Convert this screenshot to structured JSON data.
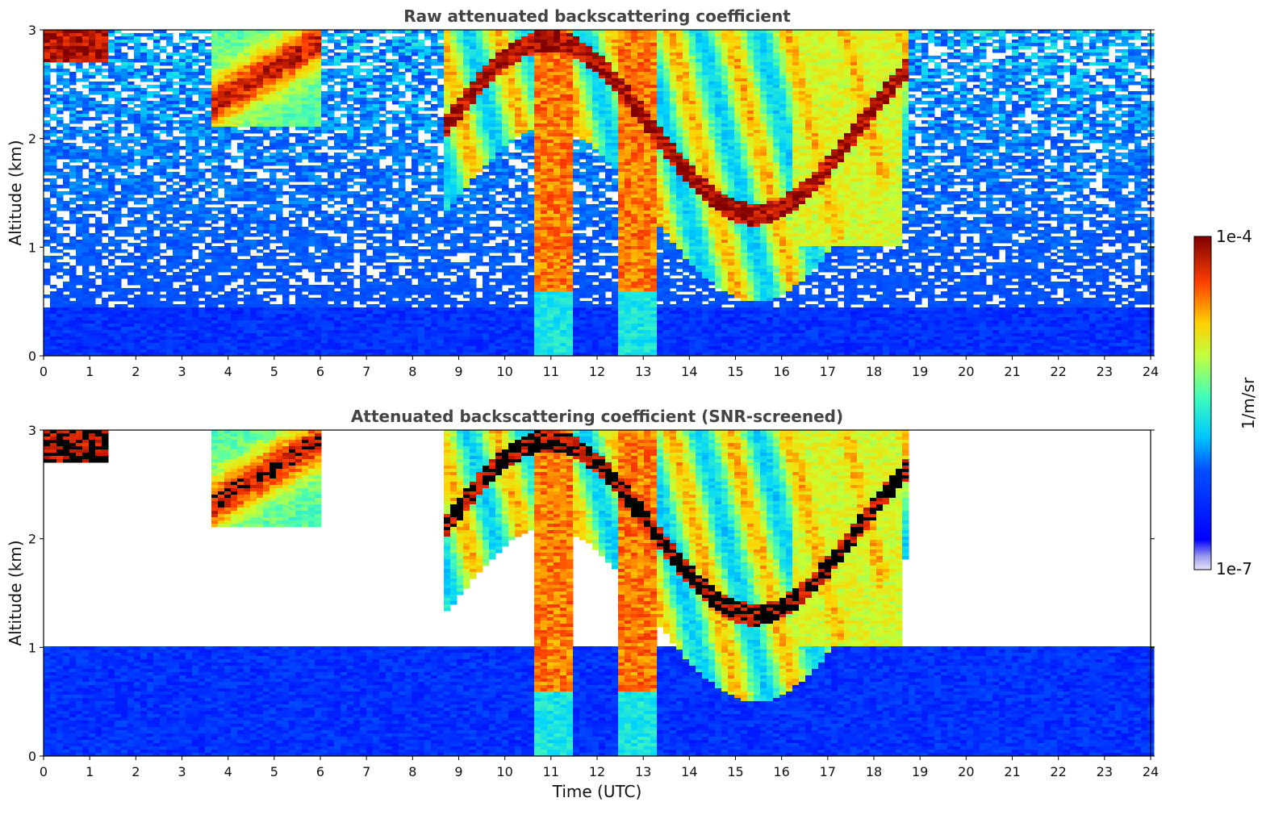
{
  "chart_data": [
    {
      "type": "heatmap",
      "title": "Raw attenuated backscattering coefficient",
      "xlabel": "",
      "ylabel": "Altitude (km)",
      "xlim": [
        0,
        24
      ],
      "ylim": [
        0,
        3
      ],
      "xticks": [
        "0",
        "1",
        "2",
        "3",
        "4",
        "5",
        "6",
        "7",
        "8",
        "9",
        "10",
        "11",
        "12",
        "13",
        "14",
        "15",
        "16",
        "17",
        "18",
        "19",
        "20",
        "21",
        "22",
        "23",
        "24"
      ],
      "yticks": [
        "0",
        "1",
        "2",
        "3"
      ],
      "screened": false,
      "features": [
        {
          "name": "boundary layer aerosol",
          "x": [
            0,
            24
          ],
          "y": [
            0,
            0.5
          ],
          "level": "low"
        },
        {
          "name": "cloud top-left",
          "x": [
            0,
            1.4
          ],
          "y": [
            2.7,
            3
          ],
          "level": "high"
        },
        {
          "name": "cloud layer",
          "x": [
            3.6,
            6
          ],
          "y": [
            2.1,
            3
          ],
          "level": "high"
        },
        {
          "name": "precipitating cloud system",
          "x": [
            8.7,
            18.7
          ],
          "y": [
            0,
            3
          ],
          "level": "high"
        }
      ]
    },
    {
      "type": "heatmap",
      "title": "Attenuated backscattering coefficient (SNR-screened)",
      "xlabel": "Time (UTC)",
      "ylabel": "Altitude (km)",
      "xlim": [
        0,
        24
      ],
      "ylim": [
        0,
        3
      ],
      "xticks": [
        "0",
        "1",
        "2",
        "3",
        "4",
        "5",
        "6",
        "7",
        "8",
        "9",
        "10",
        "11",
        "12",
        "13",
        "14",
        "15",
        "16",
        "17",
        "18",
        "19",
        "20",
        "21",
        "22",
        "23",
        "24"
      ],
      "yticks": [
        "0",
        "1",
        "2",
        "3"
      ],
      "screened": true,
      "features": [
        {
          "name": "boundary layer aerosol",
          "x": [
            0,
            24
          ],
          "y": [
            0,
            1.1
          ],
          "level": "low"
        },
        {
          "name": "cloud top-left",
          "x": [
            0,
            1.4
          ],
          "y": [
            2.7,
            3
          ],
          "level": "high"
        },
        {
          "name": "cloud layer",
          "x": [
            3.6,
            6
          ],
          "y": [
            2.1,
            3
          ],
          "level": "high"
        },
        {
          "name": "precipitating cloud system",
          "x": [
            8.7,
            18.7
          ],
          "y": [
            0,
            3
          ],
          "level": "high"
        }
      ]
    }
  ],
  "colorbar": {
    "label": "1/m/sr",
    "max_label": "1e-4",
    "min_label": "1e-7",
    "colormap": "jet",
    "scale": "log"
  }
}
